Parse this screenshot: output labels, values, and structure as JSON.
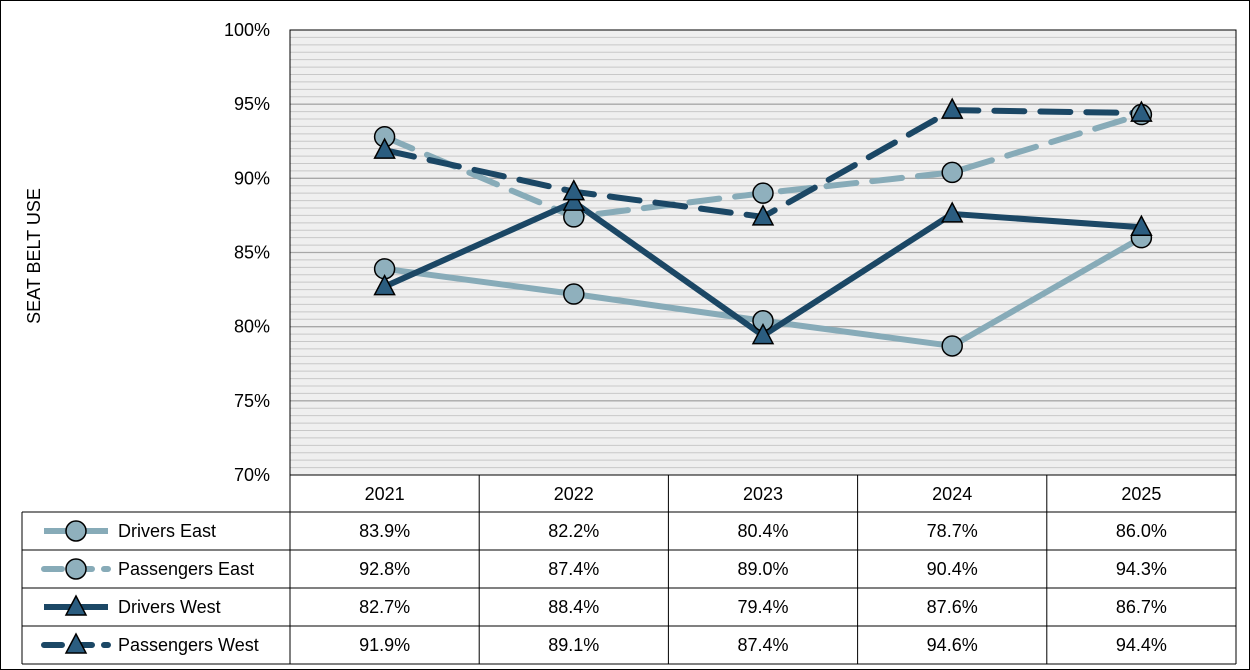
{
  "chart_data": {
    "type": "line",
    "ylabel": "SEAT BELT USE",
    "ylim": [
      70,
      100
    ],
    "yticks": [
      "70%",
      "75%",
      "80%",
      "85%",
      "90%",
      "95%",
      "100%"
    ],
    "grid": true,
    "legend_placement": "data-table-left",
    "categories": [
      "2021",
      "2022",
      "2023",
      "2024",
      "2025"
    ],
    "series": [
      {
        "name": "Drivers East",
        "values": [
          83.9,
          82.2,
          80.4,
          78.7,
          86.0
        ],
        "labels": [
          "83.9%",
          "82.2%",
          "80.4%",
          "78.7%",
          "86.0%"
        ],
        "color": "#87ABB8",
        "marker": "circle",
        "dash": "solid"
      },
      {
        "name": "Passengers East",
        "values": [
          92.8,
          87.4,
          89.0,
          90.4,
          94.3
        ],
        "labels": [
          "92.8%",
          "87.4%",
          "89.0%",
          "90.4%",
          "94.3%"
        ],
        "color": "#87ABB8",
        "marker": "circle",
        "dash": "dashed"
      },
      {
        "name": "Drivers West",
        "values": [
          82.7,
          88.4,
          79.4,
          87.6,
          86.7
        ],
        "labels": [
          "82.7%",
          "88.4%",
          "79.4%",
          "87.6%",
          "86.7%"
        ],
        "color": "#1B4765",
        "marker": "triangle",
        "dash": "solid"
      },
      {
        "name": "Passengers West",
        "values": [
          91.9,
          89.1,
          87.4,
          94.6,
          94.4
        ],
        "labels": [
          "91.9%",
          "89.1%",
          "87.4%",
          "94.6%",
          "94.4%"
        ],
        "color": "#1B4765",
        "marker": "triangle",
        "dash": "dashed"
      }
    ],
    "colors": {
      "plot_background": "#EFEFEF",
      "gridline": "#C8C8C8",
      "marker_fill": "#8FB0BD",
      "marker_fill_west": "#2B5D80"
    }
  }
}
